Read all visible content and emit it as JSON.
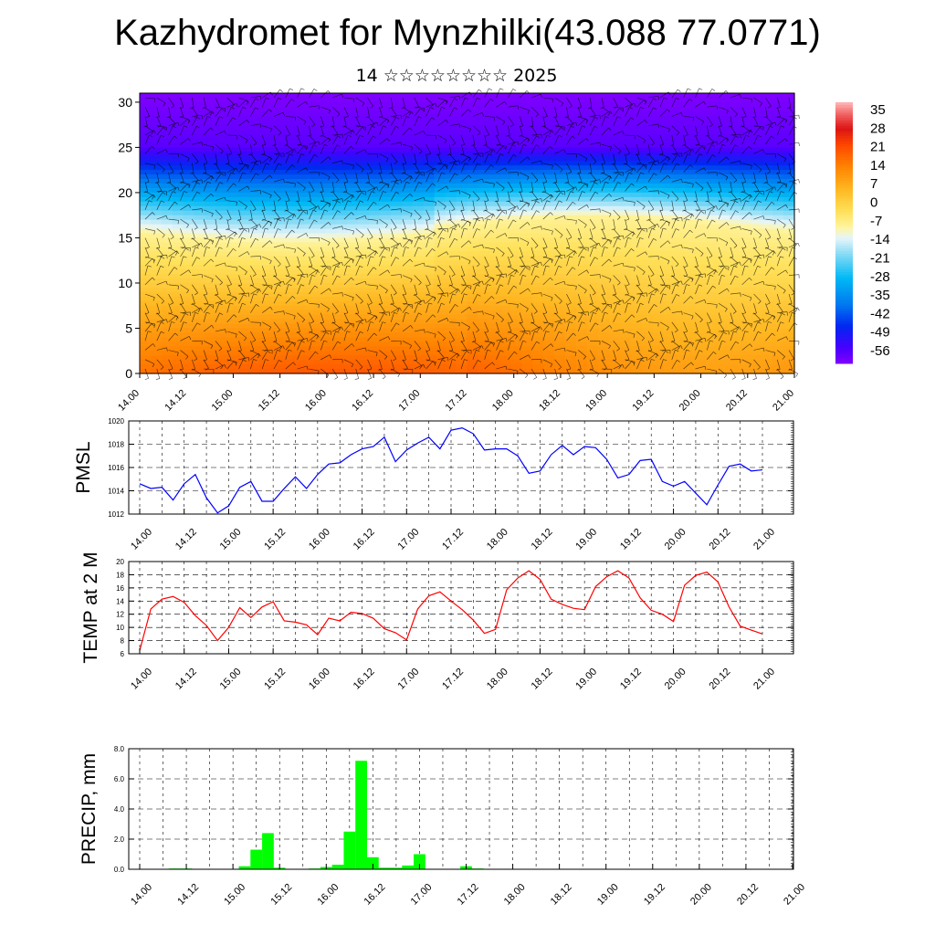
{
  "page": {
    "title": "Kazhydromet for Mynzhilki(43.088 77.0771)",
    "subtitle": "14 ☆☆☆☆☆☆☆☆ 2025"
  },
  "x_tick_labels": [
    "14.00",
    "14.12",
    "15.00",
    "15.12",
    "16.00",
    "16.12",
    "17.00",
    "17.12",
    "18.00",
    "18.12",
    "19.00",
    "19.12",
    "20.00",
    "20.12",
    "21.00"
  ],
  "colors": {
    "pmsl_line": "#0000ff",
    "temp_line": "#ff0000",
    "precip_bar": "#00ff00",
    "frame": "#000000"
  },
  "chart_data": [
    {
      "type": "heatmap",
      "title": "",
      "xlabel": "",
      "ylabel": "",
      "ylim": [
        0,
        31
      ],
      "y_ticks": [
        "0",
        "5",
        "10",
        "15",
        "20",
        "25",
        "30"
      ],
      "x_ticks": [
        "14.00",
        "14.12",
        "15.00",
        "15.12",
        "16.00",
        "16.12",
        "17.00",
        "17.12",
        "18.00",
        "18.12",
        "19.00",
        "19.12",
        "20.00",
        "20.12",
        "21.00"
      ],
      "colorbar_labels": [
        "35",
        "28",
        "21",
        "14",
        "7",
        "0",
        "-7",
        "-14",
        "-21",
        "-28",
        "-35",
        "-42",
        "-49",
        "-56"
      ],
      "colorbar_range": [
        -60,
        38
      ],
      "overlay": "wind barbs",
      "description_values": {
        "surface_temp_range": [
          10,
          25
        ],
        "freezing_level_km": [
          13.5,
          16.5
        ],
        "top_temp": -60
      }
    },
    {
      "type": "line",
      "ylabel": "PMSL",
      "xlabel": "",
      "ylim": [
        1012,
        1020
      ],
      "y_ticks": [
        "1012",
        "1014",
        "1016",
        "1018",
        "1020"
      ],
      "x_ticks": [
        "14.00",
        "14.12",
        "15.00",
        "15.12",
        "16.00",
        "16.12",
        "17.00",
        "17.12",
        "18.00",
        "18.12",
        "19.00",
        "19.12",
        "20.00",
        "20.12",
        "21.00"
      ],
      "x": [
        0,
        3,
        6,
        9,
        12,
        15,
        18,
        21,
        24,
        27,
        30,
        33,
        36,
        39,
        42,
        45,
        48,
        51,
        54,
        57,
        60,
        63,
        66,
        69,
        72,
        75,
        78,
        81,
        84,
        87,
        90,
        93,
        96,
        99,
        102,
        105,
        108,
        111,
        114,
        117,
        120,
        123,
        126,
        129,
        132,
        135,
        138,
        141,
        144,
        147,
        150,
        153,
        156,
        159,
        162,
        165,
        168
      ],
      "series": [
        {
          "values": [
            1014.6,
            1014.2,
            1014.3,
            1013.2,
            1014.6,
            1015.4,
            1013.4,
            1012.1,
            1012.7,
            1014.3,
            1014.8,
            1013.1,
            1013.1,
            1014.2,
            1015.2,
            1014.2,
            1015.4,
            1016.3,
            1016.4,
            1017.1,
            1017.6,
            1017.8,
            1018.6,
            1016.5,
            1017.5,
            1018.1,
            1018.6,
            1017.6,
            1019.2,
            1019.4,
            1018.9,
            1017.5,
            1017.6,
            1017.6,
            1017.0,
            1015.5,
            1015.7,
            1017.1,
            1017.9,
            1017.1,
            1017.8,
            1017.7,
            1016.7,
            1015.1,
            1015.4,
            1016.6,
            1016.7,
            1014.8,
            1014.4,
            1014.8,
            1013.8,
            1012.8,
            1014.5,
            1016.1,
            1016.3,
            1015.7,
            1015.8
          ]
        }
      ]
    },
    {
      "type": "line",
      "ylabel": "TEMP at 2 M",
      "xlabel": "",
      "ylim": [
        6,
        20
      ],
      "y_ticks": [
        "6",
        "8",
        "10",
        "12",
        "14",
        "16",
        "18",
        "20"
      ],
      "x_ticks": [
        "14.00",
        "14.12",
        "15.00",
        "15.12",
        "16.00",
        "16.12",
        "17.00",
        "17.12",
        "18.00",
        "18.12",
        "19.00",
        "19.12",
        "20.00",
        "20.12",
        "21.00"
      ],
      "x": [
        0,
        3,
        6,
        9,
        12,
        15,
        18,
        21,
        24,
        27,
        30,
        33,
        36,
        39,
        42,
        45,
        48,
        51,
        54,
        57,
        60,
        63,
        66,
        69,
        72,
        75,
        78,
        81,
        84,
        87,
        90,
        93,
        96,
        99,
        102,
        105,
        108,
        111,
        114,
        117,
        120,
        123,
        126,
        129,
        132,
        135,
        138,
        141,
        144,
        147,
        150,
        153,
        156,
        159,
        162,
        165,
        168
      ],
      "series": [
        {
          "values": [
            6.5,
            12.8,
            14.3,
            14.7,
            13.8,
            11.8,
            10.3,
            8.0,
            10.0,
            13.0,
            11.5,
            13.1,
            13.9,
            11.0,
            10.8,
            10.4,
            8.9,
            11.4,
            11.0,
            12.3,
            12.1,
            11.4,
            9.8,
            9.2,
            8.1,
            12.8,
            14.8,
            15.4,
            14.0,
            12.7,
            11.1,
            9.1,
            9.7,
            15.7,
            17.5,
            18.6,
            17.3,
            14.3,
            13.5,
            12.9,
            12.7,
            16.2,
            17.7,
            18.6,
            17.5,
            14.5,
            12.6,
            12.0,
            10.9,
            16.4,
            17.9,
            18.4,
            16.9,
            13.1,
            10.2,
            9.6,
            9.0
          ]
        }
      ]
    },
    {
      "type": "bar",
      "ylabel": "PRECIP, mm",
      "xlabel": "",
      "ylim": [
        0,
        8
      ],
      "y_ticks": [
        "0.0",
        "2.0",
        "4.0",
        "6.0",
        "8.0"
      ],
      "x_ticks": [
        "14.00",
        "14.12",
        "15.00",
        "15.12",
        "16.00",
        "16.12",
        "17.00",
        "17.12",
        "18.00",
        "18.12",
        "19.00",
        "19.12",
        "20.00",
        "20.12",
        "21.00"
      ],
      "x": [
        0,
        3,
        6,
        9,
        12,
        15,
        18,
        21,
        24,
        27,
        30,
        33,
        36,
        39,
        42,
        45,
        48,
        51,
        54,
        57,
        60,
        63,
        66,
        69,
        72,
        75,
        78,
        81,
        84,
        87,
        90,
        93,
        96,
        99,
        102,
        105,
        108,
        111,
        114,
        117,
        120,
        123,
        126,
        129,
        132,
        135,
        138,
        141,
        144,
        147,
        150,
        153,
        156,
        159,
        162,
        165,
        168
      ],
      "values": [
        0,
        0,
        0,
        0.05,
        0.05,
        0,
        0,
        0,
        0,
        0.2,
        1.3,
        2.4,
        0.1,
        0,
        0,
        0.05,
        0.15,
        0.3,
        2.5,
        7.2,
        0.8,
        0.1,
        0.1,
        0.25,
        1.0,
        0,
        0,
        0,
        0.2,
        0.05,
        0,
        0,
        0,
        0,
        0,
        0,
        0,
        0,
        0,
        0,
        0,
        0,
        0,
        0,
        0,
        0,
        0,
        0,
        0,
        0,
        0,
        0,
        0,
        0,
        0,
        0,
        0
      ]
    }
  ]
}
